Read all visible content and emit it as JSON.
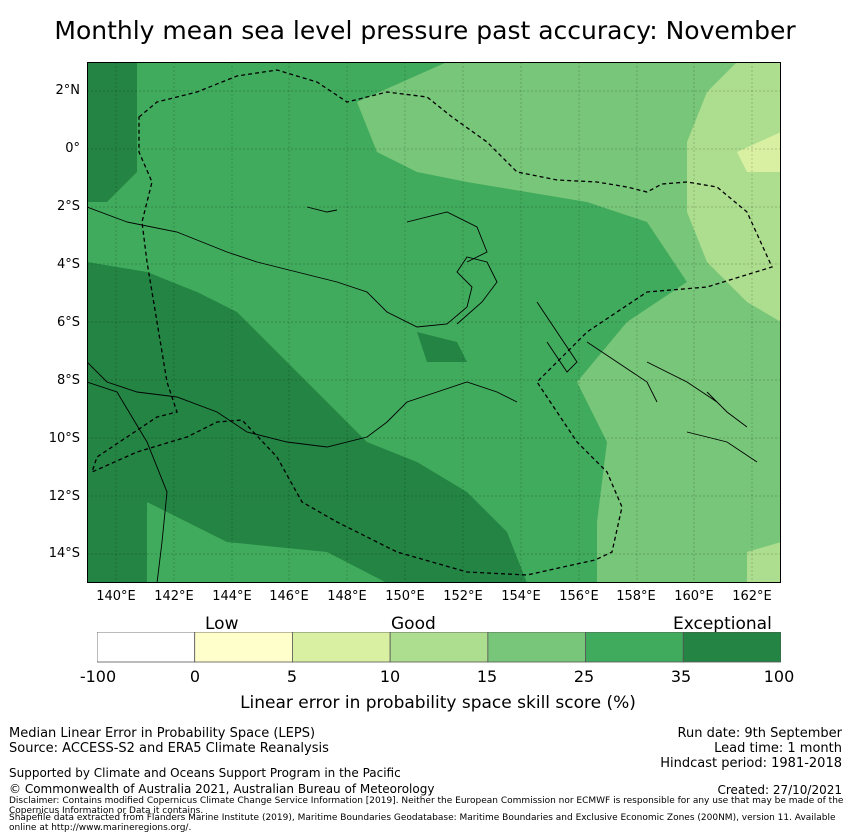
{
  "title": "Monthly mean sea level pressure past accuracy: November",
  "map": {
    "lat_labels": [
      "2°N",
      "0°",
      "2°S",
      "4°S",
      "6°S",
      "8°S",
      "10°S",
      "12°S",
      "14°S"
    ],
    "lon_labels": [
      "140°E",
      "142°E",
      "144°E",
      "146°E",
      "148°E",
      "150°E",
      "152°E",
      "154°E",
      "156°E",
      "158°E",
      "160°E",
      "162°E"
    ],
    "lat_range": [
      -15,
      3
    ],
    "lon_range": [
      139,
      163
    ],
    "gridlines": true
  },
  "colorbar": {
    "categories": [
      "Low",
      "Good",
      "Exceptional"
    ],
    "ticks": [
      "-100",
      "0",
      "5",
      "10",
      "15",
      "25",
      "35",
      "100"
    ],
    "colors": [
      "#ffffff",
      "#ffffcc",
      "#d9f0a3",
      "#addd8e",
      "#78c679",
      "#41ab5d",
      "#238443"
    ],
    "title": "Linear error in probability space skill score (%)"
  },
  "info": {
    "line1": "Median Linear Error in Probability Space (LEPS)",
    "line2": "Source: ACCESS-S2 and ERA5 Climate Reanalysis",
    "line3": "Supported by Climate and Oceans Support Program in the Pacific",
    "line4": "© Commonwealth of Australia 2021, Australian Bureau of Meteorology",
    "run_date": "Run date: 9th September",
    "lead_time": "Lead time: 1 month",
    "hindcast": "Hindcast period: 1981-2018",
    "created": "Created: 27/10/2021"
  },
  "disclaimer": "Disclaimer: Contains modified Copernicus Climate Change Service Information [2019]. Neither the European Commission nor ECMWF is responsible for any use that may be made of the Copernicus Information or Data it contains.",
  "shapefile": "Shapefile data extracted from Flanders Marine Institute (2019), Maritime Boundaries Geodatabase: Maritime Boundaries and Exclusive Economic Zones (200NM), version 11. Available online at http://www.marineregions.org/."
}
